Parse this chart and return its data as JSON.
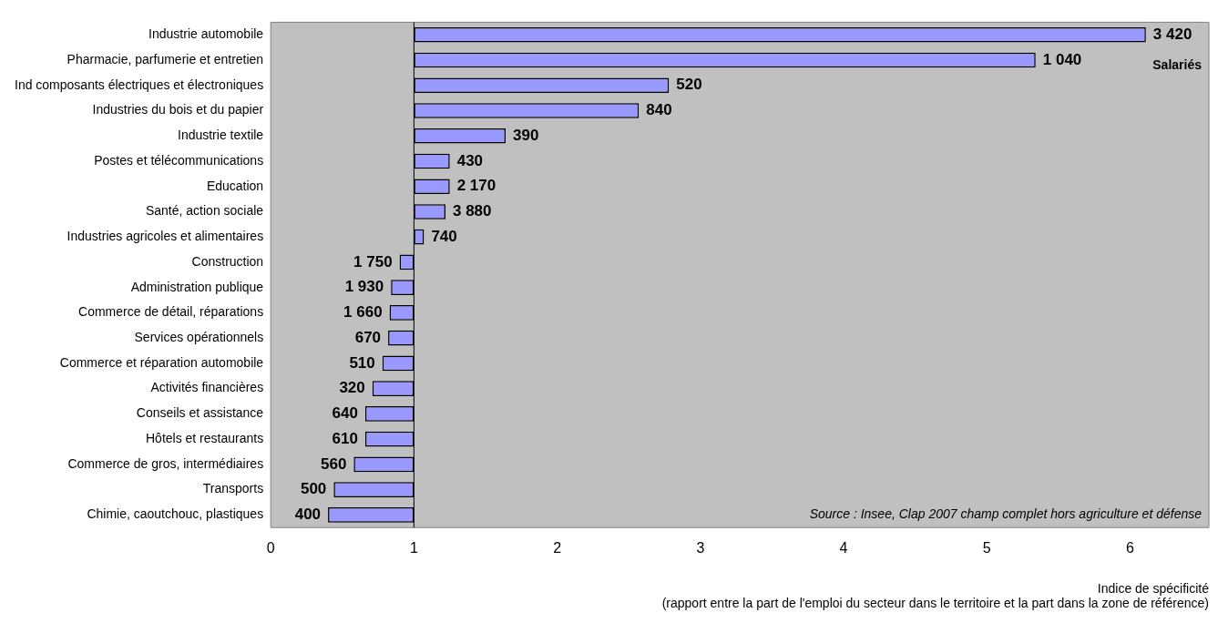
{
  "chart_data": {
    "type": "bar",
    "orientation": "horizontal",
    "categories": [
      "Industrie automobile",
      "Pharmacie, parfumerie et entretien",
      "Ind composants électriques et électroniques",
      "Industries du bois et du papier",
      "Industrie textile",
      "Postes et télécommunications",
      "Education",
      "Santé, action sociale",
      "Industries agricoles et alimentaires",
      "Construction",
      "Administration publique",
      "Commerce de détail, réparations",
      "Services opérationnels",
      "Commerce et réparation automobile",
      "Activités financières",
      "Conseils et assistance",
      "Hôtels et restaurants",
      "Commerce de gros, intermédiaires",
      "Transports",
      "Chimie, caoutchouc, plastiques"
    ],
    "base": [
      1,
      1,
      1,
      1,
      1,
      1,
      1,
      1,
      1,
      1,
      1,
      1,
      1,
      1,
      1,
      1,
      1,
      1,
      1,
      1
    ],
    "values": [
      5.11,
      4.34,
      1.78,
      1.57,
      0.64,
      0.25,
      0.25,
      0.22,
      0.07,
      -0.1,
      -0.16,
      -0.17,
      -0.18,
      -0.22,
      -0.29,
      -0.34,
      -0.34,
      -0.42,
      -0.56,
      -0.6
    ],
    "color": "#9999ff",
    "xlim": [
      0,
      6.55
    ],
    "xticks": [
      0,
      1,
      2,
      3,
      4,
      5,
      6
    ],
    "xlabel": "Indice de spécificité\n(rapport entre la part de l'emploi du secteur dans le territoire et la part dans la zone de référence)",
    "ref_lines": [
      {
        "axis": "x",
        "value": 1,
        "color": "#000000"
      }
    ],
    "annotations": [
      "Salariés",
      "Source : Insee, Clap 2007 champ complet hors agriculture et défense",
      {
        "text": "3 420",
        "x": 6.11,
        "y": "Industrie automobile"
      },
      {
        "text": "1 040",
        "x": 5.34,
        "y": "Pharmacie, parfumerie et entretien"
      },
      {
        "text": "520",
        "x": 2.78,
        "y": "Ind composants électriques et électroniques"
      },
      {
        "text": "840",
        "x": 2.57,
        "y": "Industries du bois et du papier"
      },
      {
        "text": "390",
        "x": 1.64,
        "y": "Industrie textile"
      },
      {
        "text": "430",
        "x": 1.25,
        "y": "Postes et télécommunications"
      },
      {
        "text": "2 170",
        "x": 1.25,
        "y": "Education"
      },
      {
        "text": "3 880",
        "x": 1.22,
        "y": "Santé, action sociale"
      },
      {
        "text": "740",
        "x": 1.07,
        "y": "Industries agricoles et alimentaires"
      },
      {
        "text": "1 750",
        "x": 0.9,
        "y": "Construction"
      },
      {
        "text": "1 930",
        "x": 0.84,
        "y": "Administration publique"
      },
      {
        "text": "1 660",
        "x": 0.83,
        "y": "Commerce de détail, réparations"
      },
      {
        "text": "670",
        "x": 0.82,
        "y": "Services opérationnels"
      },
      {
        "text": "510",
        "x": 0.78,
        "y": "Commerce et réparation automobile"
      },
      {
        "text": "320",
        "x": 0.71,
        "y": "Activités financières"
      },
      {
        "text": "640",
        "x": 0.66,
        "y": "Conseils et assistance"
      },
      {
        "text": "610",
        "x": 0.66,
        "y": "Hôtels et restaurants"
      },
      {
        "text": "560",
        "x": 0.58,
        "y": "Commerce de gros, intermédiaires"
      },
      {
        "text": "500",
        "x": 0.44,
        "y": "Transports"
      },
      {
        "text": "400",
        "x": 0.4,
        "y": "Chimie, caoutchouc, plastiques"
      }
    ],
    "grid": false,
    "legend": false
  }
}
